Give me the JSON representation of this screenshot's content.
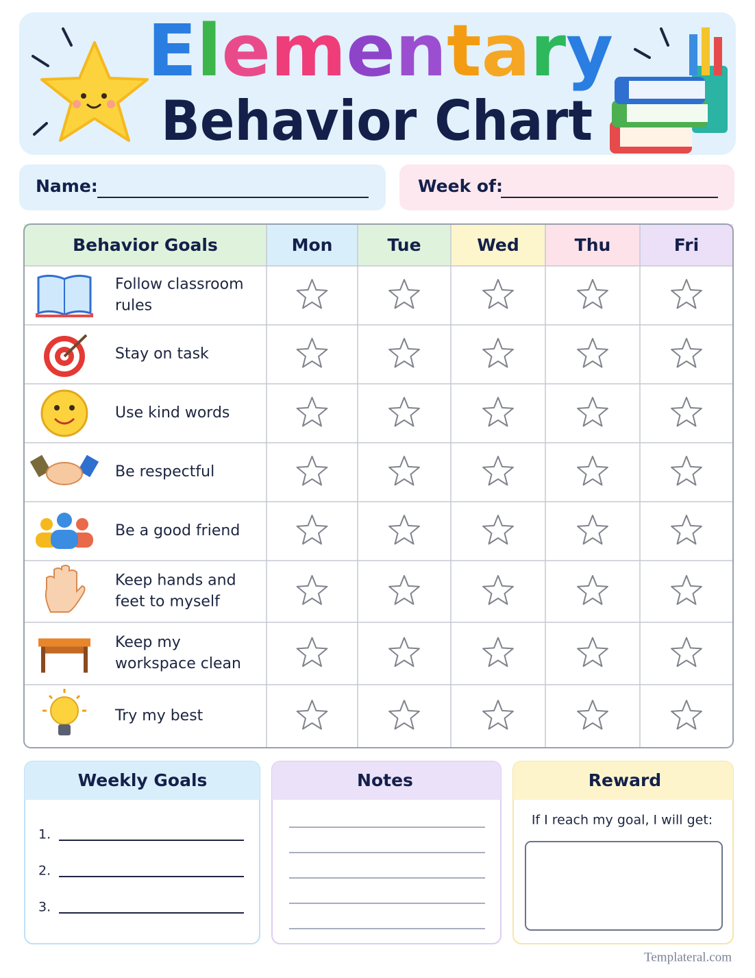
{
  "header": {
    "title": "Elementary",
    "subtitle": "Behavior Chart"
  },
  "fields": {
    "name": "Name:",
    "week": "Week of:"
  },
  "table": {
    "header": [
      "Behavior Goals",
      "Mon",
      "Tue",
      "Wed",
      "Thu",
      "Fri"
    ],
    "goals": [
      "Follow classroom rules",
      "Stay on task",
      "Use kind words",
      "Be respectful",
      "Be a good friend",
      "Keep hands and feet to myself",
      "Keep my workspace clean",
      "Try my best"
    ]
  },
  "panels": {
    "weekly_goals": {
      "title": "Weekly Goals",
      "items": [
        "1.",
        "2.",
        "3."
      ]
    },
    "notes": {
      "title": "Notes"
    },
    "reward": {
      "title": "Reward",
      "text": "If I reach my goal, I will get:"
    }
  },
  "footer": "Templateral.com"
}
